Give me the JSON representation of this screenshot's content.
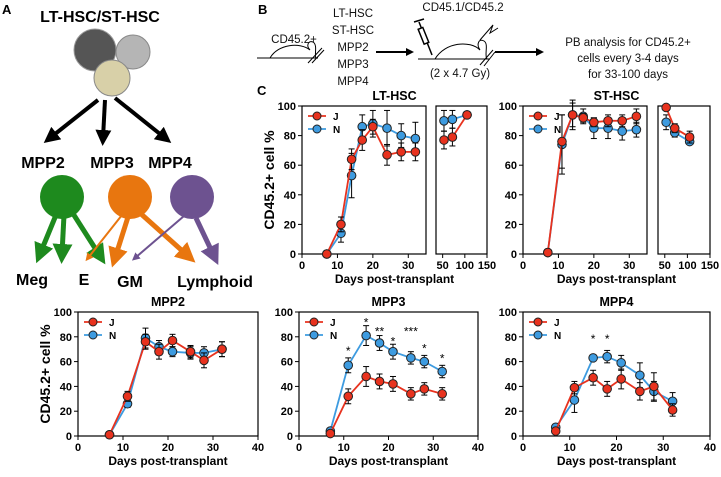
{
  "panel_labels": {
    "a": "A",
    "b": "B",
    "c": "C"
  },
  "diagram_a": {
    "top_label": "LT-HSC/ST-HSC",
    "progenitors": [
      "MPP2",
      "MPP3",
      "MPP4"
    ],
    "outputs": [
      "Meg",
      "E",
      "GM",
      "Lymphoid"
    ],
    "colors": {
      "mpp2": "#1e8a1e",
      "mpp3": "#e8760f",
      "mpp4": "#6d5290",
      "hsc_dark": "#555555",
      "hsc_light": "#b5b5b5",
      "hsc_tan": "#d8d0a8"
    }
  },
  "diagram_b": {
    "donor": "CD45.2+",
    "populations": [
      "LT-HSC",
      "ST-HSC",
      "MPP2",
      "MPP3",
      "MPP4"
    ],
    "recipient": "CD45.1/CD45.2",
    "irradiation": "(2 x 4.7 Gy)",
    "analysis": [
      "PB analysis for CD45.2+",
      "cells every 3-4 days",
      "for 33-100 days"
    ]
  },
  "chart_data": [
    {
      "type": "line",
      "title": "LT-HSC",
      "xlabel": "Days post-transplant",
      "ylabel": "CD45.2+ cell %",
      "ylim": [
        0,
        100
      ],
      "yticks": [
        "0",
        "20",
        "40",
        "60",
        "80",
        "100"
      ],
      "xaxis_broken": true,
      "xlim": [
        [
          0,
          35
        ],
        [
          35,
          150
        ]
      ],
      "xticks": [
        [
          "0",
          "10",
          "20",
          "30"
        ],
        [
          "50",
          "100",
          "150"
        ]
      ],
      "legend": "top-left",
      "series": [
        {
          "name": "J",
          "color": "#e8321e",
          "x": [
            7,
            11,
            14,
            17,
            20,
            24,
            28,
            32,
            53,
            72,
            105
          ],
          "y": [
            0,
            20,
            64,
            77,
            86,
            67,
            69,
            69,
            77,
            79,
            94
          ],
          "err": [
            0,
            5,
            7,
            7,
            5,
            7,
            6,
            6,
            6,
            6,
            0
          ]
        },
        {
          "name": "N",
          "color": "#3d9be0",
          "x": [
            7,
            11,
            14,
            17,
            20,
            24,
            28,
            32,
            53,
            72,
            105
          ],
          "y": [
            0,
            14,
            53,
            86,
            88,
            85,
            80,
            78,
            90,
            91,
            94
          ],
          "err": [
            0,
            6,
            15,
            8,
            9,
            12,
            8,
            11,
            7,
            6,
            0
          ]
        }
      ],
      "annotations": []
    },
    {
      "type": "line",
      "title": "ST-HSC",
      "xlabel": "Days post-transplant",
      "ylabel": "",
      "ylim": [
        0,
        100
      ],
      "yticks": [
        "0",
        "20",
        "40",
        "60",
        "80",
        "100"
      ],
      "xaxis_broken": true,
      "xlim": [
        [
          0,
          35
        ],
        [
          35,
          150
        ]
      ],
      "xticks": [
        [
          "0",
          "10",
          "20",
          "30"
        ],
        [
          "50",
          "100",
          "150"
        ]
      ],
      "legend": "top-left",
      "series": [
        {
          "name": "J",
          "color": "#e8321e",
          "x": [
            7,
            11,
            14,
            17,
            20,
            24,
            28,
            32,
            53,
            72,
            105
          ],
          "y": [
            1,
            76,
            94,
            92,
            89,
            90,
            90,
            93,
            99,
            85,
            79
          ],
          "err": [
            0,
            18,
            8,
            3,
            3,
            4,
            4,
            5,
            2,
            3,
            4
          ]
        },
        {
          "name": "N",
          "color": "#3d9be0",
          "x": [
            7,
            11,
            14,
            17,
            20,
            24,
            28,
            32,
            53,
            72,
            105
          ],
          "y": [
            1,
            74,
            94,
            93,
            85,
            85,
            83,
            84,
            89,
            82,
            76
          ],
          "err": [
            0,
            20,
            10,
            5,
            7,
            7,
            6,
            5,
            5,
            3,
            2
          ]
        }
      ],
      "annotations": []
    },
    {
      "type": "line",
      "title": "MPP2",
      "xlabel": "Days post-transplant",
      "ylabel": "CD45.2+ cell %",
      "ylim": [
        0,
        100
      ],
      "yticks": [
        "0",
        "20",
        "40",
        "60",
        "80",
        "100"
      ],
      "xlim": [
        [
          0,
          40
        ]
      ],
      "xticks": [
        [
          "0",
          "10",
          "20",
          "30",
          "40"
        ]
      ],
      "legend": "top-left",
      "series": [
        {
          "name": "J",
          "color": "#e8321e",
          "x": [
            7,
            11,
            15,
            18,
            21,
            25,
            28,
            32
          ],
          "y": [
            1,
            32,
            76,
            68,
            77,
            68,
            61,
            70
          ],
          "err": [
            0,
            4,
            6,
            6,
            5,
            5,
            6,
            6
          ]
        },
        {
          "name": "N",
          "color": "#3d9be0",
          "x": [
            7,
            11,
            15,
            18,
            21,
            25,
            28,
            32
          ],
          "y": [
            1,
            26,
            79,
            72,
            68,
            67,
            67,
            70
          ],
          "err": [
            0,
            3,
            8,
            5,
            4,
            5,
            5,
            6
          ]
        }
      ],
      "annotations": []
    },
    {
      "type": "line",
      "title": "MPP3",
      "xlabel": "Days post-transplant",
      "ylabel": "",
      "ylim": [
        0,
        100
      ],
      "yticks": [
        "0",
        "20",
        "40",
        "60",
        "80",
        "100"
      ],
      "xlim": [
        [
          0,
          40
        ]
      ],
      "xticks": [
        [
          "0",
          "10",
          "20",
          "30",
          "40"
        ]
      ],
      "legend": "top-left",
      "series": [
        {
          "name": "J",
          "color": "#e8321e",
          "x": [
            7,
            11,
            15,
            18,
            21,
            25,
            28,
            32
          ],
          "y": [
            2,
            32,
            48,
            44,
            42,
            34,
            38,
            34
          ],
          "err": [
            1,
            6,
            8,
            6,
            6,
            5,
            5,
            5
          ]
        },
        {
          "name": "N",
          "color": "#3d9be0",
          "x": [
            7,
            11,
            15,
            18,
            21,
            25,
            28,
            32
          ],
          "y": [
            4,
            57,
            81,
            75,
            68,
            63,
            60,
            52
          ],
          "err": [
            2,
            6,
            8,
            6,
            6,
            5,
            5,
            5
          ]
        }
      ],
      "annotations": [
        {
          "x": 11,
          "y": 70,
          "text": "*"
        },
        {
          "x": 15,
          "y": 93,
          "text": "*"
        },
        {
          "x": 18,
          "y": 86,
          "text": "**"
        },
        {
          "x": 21,
          "y": 78,
          "text": "*"
        },
        {
          "x": 25,
          "y": 86,
          "text": "***"
        },
        {
          "x": 28,
          "y": 72,
          "text": "*"
        },
        {
          "x": 32,
          "y": 64,
          "text": "*"
        }
      ]
    },
    {
      "type": "line",
      "title": "MPP4",
      "xlabel": "Days post-transplant",
      "ylabel": "",
      "ylim": [
        0,
        100
      ],
      "yticks": [
        "0",
        "20",
        "40",
        "60",
        "80",
        "100"
      ],
      "xlim": [
        [
          0,
          40
        ]
      ],
      "xticks": [
        [
          "0",
          "10",
          "20",
          "30",
          "40"
        ]
      ],
      "legend": "top-left",
      "series": [
        {
          "name": "J",
          "color": "#e8321e",
          "x": [
            7,
            11,
            15,
            18,
            21,
            25,
            28,
            32
          ],
          "y": [
            4,
            39,
            47,
            38,
            46,
            36,
            40,
            21
          ],
          "err": [
            2,
            5,
            6,
            6,
            8,
            7,
            11,
            5
          ]
        },
        {
          "name": "N",
          "color": "#3d9be0",
          "x": [
            7,
            11,
            15,
            18,
            21,
            25,
            28,
            32
          ],
          "y": [
            7,
            29,
            63,
            64,
            59,
            49,
            36,
            28
          ],
          "err": [
            2,
            10,
            2,
            5,
            6,
            10,
            8,
            7
          ]
        }
      ],
      "annotations": [
        {
          "x": 15,
          "y": 80,
          "text": "*"
        },
        {
          "x": 18,
          "y": 80,
          "text": "*"
        }
      ]
    }
  ]
}
